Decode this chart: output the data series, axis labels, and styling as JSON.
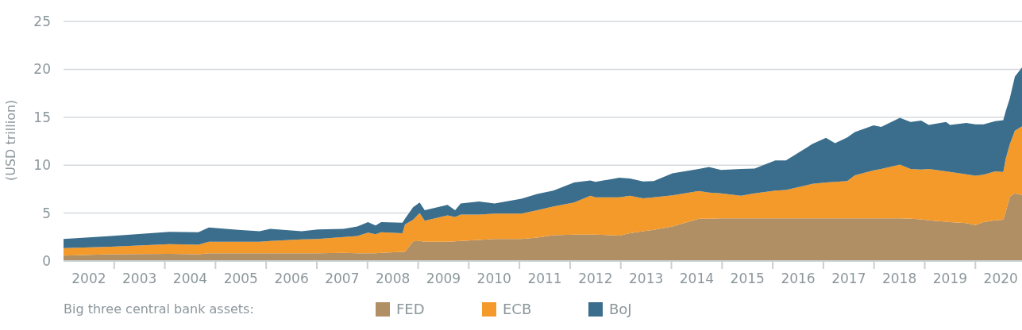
{
  "chart_data": {
    "type": "area",
    "stacked": true,
    "ylabel": "(USD trillion)",
    "legend_title": "Big three central bank assets:",
    "legend": "bottom",
    "grid": "y",
    "xlim": [
      2002,
      2020.92
    ],
    "ylim": [
      0,
      25
    ],
    "yticks": [
      0,
      5,
      10,
      15,
      20,
      25
    ],
    "xticks": [
      {
        "value": 2002.5,
        "label": "2002"
      },
      {
        "value": 2003,
        "label": null
      },
      {
        "value": 2003.5,
        "label": "2003"
      },
      {
        "value": 2004,
        "label": null
      },
      {
        "value": 2004.5,
        "label": "2004"
      },
      {
        "value": 2005,
        "label": null
      },
      {
        "value": 2005.5,
        "label": "2005"
      },
      {
        "value": 2006,
        "label": null
      },
      {
        "value": 2006.5,
        "label": "2006"
      },
      {
        "value": 2007,
        "label": null
      },
      {
        "value": 2007.5,
        "label": "2007"
      },
      {
        "value": 2008,
        "label": null
      },
      {
        "value": 2008.5,
        "label": "2008"
      },
      {
        "value": 2009,
        "label": null
      },
      {
        "value": 2009.5,
        "label": "2009"
      },
      {
        "value": 2010,
        "label": null
      },
      {
        "value": 2010.5,
        "label": "2010"
      },
      {
        "value": 2011,
        "label": null
      },
      {
        "value": 2011.5,
        "label": "2011"
      },
      {
        "value": 2012,
        "label": null
      },
      {
        "value": 2012.5,
        "label": "2012"
      },
      {
        "value": 2013,
        "label": null
      },
      {
        "value": 2013.5,
        "label": "2013"
      },
      {
        "value": 2014,
        "label": null
      },
      {
        "value": 2014.5,
        "label": "2014"
      },
      {
        "value": 2015,
        "label": null
      },
      {
        "value": 2015.5,
        "label": "2015"
      },
      {
        "value": 2016,
        "label": null
      },
      {
        "value": 2016.5,
        "label": "2016"
      },
      {
        "value": 2017,
        "label": null
      },
      {
        "value": 2017.5,
        "label": "2017"
      },
      {
        "value": 2018,
        "label": null
      },
      {
        "value": 2018.5,
        "label": "2018"
      },
      {
        "value": 2019,
        "label": null
      },
      {
        "value": 2019.5,
        "label": "2019"
      },
      {
        "value": 2020,
        "label": null
      },
      {
        "value": 2020.5,
        "label": "2020"
      }
    ],
    "x": [
      2002.0,
      2002.94,
      2004.09,
      2004.66,
      2004.87,
      2005.45,
      2005.87,
      2006.08,
      2006.7,
      2007.02,
      2007.53,
      2007.8,
      2008.01,
      2008.16,
      2008.27,
      2008.69,
      2008.74,
      2008.9,
      2009.03,
      2009.13,
      2009.58,
      2009.73,
      2009.84,
      2010.2,
      2010.51,
      2011.04,
      2011.35,
      2011.67,
      2012.08,
      2012.4,
      2012.5,
      2012.97,
      2013.18,
      2013.44,
      2013.65,
      2014.02,
      2014.54,
      2014.74,
      2014.98,
      2015.37,
      2015.64,
      2016.05,
      2016.26,
      2016.78,
      2017.05,
      2017.23,
      2017.47,
      2017.62,
      2017.99,
      2018.14,
      2018.51,
      2018.72,
      2018.93,
      2019.08,
      2019.42,
      2019.5,
      2019.82,
      2020.0,
      2020.16,
      2020.39,
      2020.55,
      2020.6,
      2020.68,
      2020.78,
      2020.92
    ],
    "series": [
      {
        "name": "FED",
        "color": "#b08f65",
        "values": [
          0.55,
          0.7,
          0.75,
          0.7,
          0.8,
          0.8,
          0.8,
          0.8,
          0.8,
          0.8,
          0.85,
          0.8,
          0.8,
          0.8,
          0.85,
          0.95,
          0.95,
          2.05,
          2.1,
          2.0,
          2.0,
          2.05,
          2.1,
          2.2,
          2.3,
          2.3,
          2.45,
          2.7,
          2.75,
          2.75,
          2.75,
          2.65,
          2.9,
          3.1,
          3.25,
          3.6,
          4.4,
          4.4,
          4.45,
          4.45,
          4.45,
          4.45,
          4.45,
          4.45,
          4.45,
          4.45,
          4.45,
          4.45,
          4.45,
          4.45,
          4.45,
          4.4,
          4.35,
          4.25,
          4.1,
          4.05,
          3.95,
          3.75,
          4.05,
          4.25,
          4.3,
          5.15,
          6.7,
          7.05,
          6.9
        ]
      },
      {
        "name": "ECB",
        "color": "#f39a2b",
        "values": [
          0.8,
          0.8,
          1.0,
          1.0,
          1.2,
          1.2,
          1.2,
          1.3,
          1.45,
          1.5,
          1.65,
          1.8,
          2.15,
          2.0,
          2.15,
          1.95,
          2.85,
          2.25,
          2.9,
          2.2,
          2.75,
          2.55,
          2.75,
          2.65,
          2.65,
          2.65,
          2.85,
          3.0,
          3.35,
          4.05,
          3.9,
          4.0,
          3.9,
          3.45,
          3.4,
          3.25,
          2.9,
          2.75,
          2.6,
          2.35,
          2.6,
          2.9,
          2.95,
          3.6,
          3.75,
          3.8,
          3.9,
          4.5,
          5.0,
          5.15,
          5.6,
          5.2,
          5.2,
          5.35,
          5.25,
          5.25,
          5.1,
          5.15,
          4.95,
          5.1,
          5.0,
          5.55,
          5.5,
          6.55,
          7.15
        ]
      },
      {
        "name": "BoJ",
        "color": "#3b6e8c",
        "values": [
          0.95,
          1.1,
          1.3,
          1.3,
          1.5,
          1.25,
          1.1,
          1.25,
          0.85,
          1.0,
          0.85,
          1.0,
          1.1,
          0.9,
          1.05,
          1.1,
          0.6,
          1.3,
          1.1,
          1.1,
          1.1,
          0.7,
          1.15,
          1.35,
          1.05,
          1.55,
          1.7,
          1.65,
          2.1,
          1.6,
          1.6,
          2.05,
          1.8,
          1.75,
          1.7,
          2.3,
          2.3,
          2.65,
          2.45,
          2.8,
          2.6,
          3.15,
          3.1,
          4.15,
          4.65,
          4.05,
          4.55,
          4.5,
          4.7,
          4.4,
          4.9,
          4.9,
          5.1,
          4.6,
          5.15,
          4.9,
          5.35,
          5.35,
          5.25,
          5.25,
          5.4,
          4.95,
          4.8,
          5.65,
          6.15
        ]
      }
    ]
  }
}
